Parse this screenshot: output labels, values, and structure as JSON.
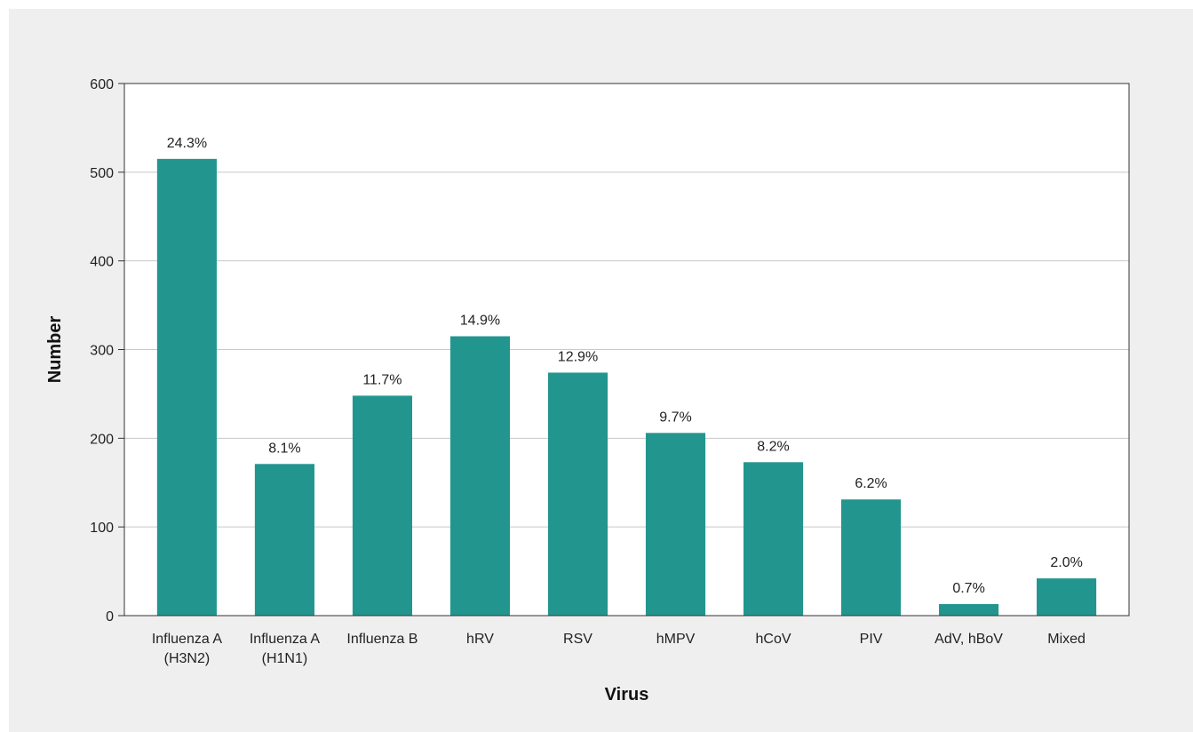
{
  "chart_data": {
    "type": "bar",
    "xlabel": "Virus",
    "ylabel": "Number",
    "ylim": [
      0,
      600
    ],
    "yticks": [
      0,
      100,
      200,
      300,
      400,
      500,
      600
    ],
    "grid": true,
    "categories": [
      [
        "Influenza A",
        "(H3N2)"
      ],
      [
        "Influenza A",
        "(H1N1)"
      ],
      [
        "Influenza B"
      ],
      [
        "hRV"
      ],
      [
        "RSV"
      ],
      [
        "hMPV"
      ],
      [
        "hCoV"
      ],
      [
        "PIV"
      ],
      [
        "AdV, hBoV"
      ],
      [
        "Mixed"
      ]
    ],
    "values": [
      515,
      171,
      248,
      315,
      274,
      206,
      173,
      131,
      13,
      42
    ],
    "data_labels": [
      "24.3%",
      "8.1%",
      "11.7%",
      "14.9%",
      "12.9%",
      "9.7%",
      "8.2%",
      "6.2%",
      "0.7%",
      "2.0%"
    ],
    "colors": {
      "bar": "#22968e",
      "grid": "#c8c8c8",
      "axis": "#333333",
      "background": "#efefef",
      "plot_background": "#ffffff"
    }
  }
}
